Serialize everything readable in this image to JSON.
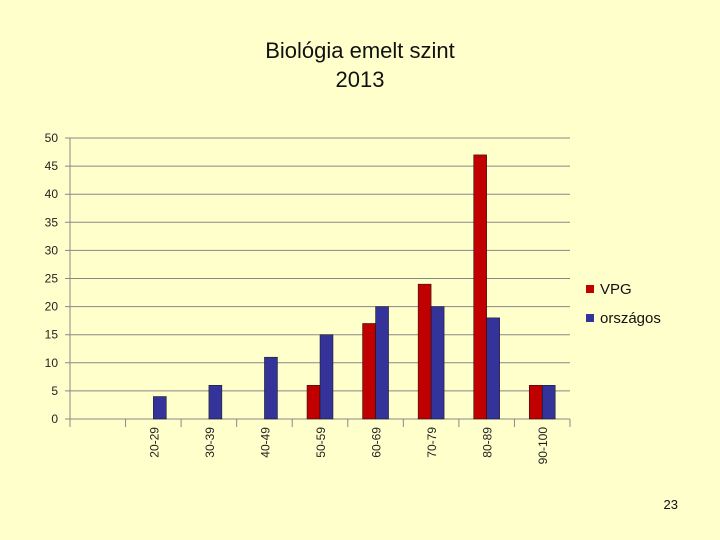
{
  "page": {
    "number": "23"
  },
  "chart_data": {
    "type": "bar",
    "title": [
      "Biológia emelt szint",
      "2013"
    ],
    "categories": [
      "",
      "20-29",
      "30-39",
      "40-49",
      "50-59",
      "60-69",
      "70-79",
      "80-89",
      "90-100"
    ],
    "series": [
      {
        "name": "VPG",
        "color": "#c00000",
        "values": [
          0,
          0,
          0,
          0,
          6,
          17,
          24,
          47,
          6
        ]
      },
      {
        "name": "országos",
        "color": "#333399",
        "values": [
          0,
          4,
          6,
          11,
          15,
          20,
          20,
          18,
          6
        ]
      }
    ],
    "ylim": [
      0,
      50
    ],
    "yticks": [
      0,
      5,
      10,
      15,
      20,
      25,
      30,
      35,
      40,
      45,
      50
    ],
    "grid": true,
    "legend_position": "right"
  }
}
